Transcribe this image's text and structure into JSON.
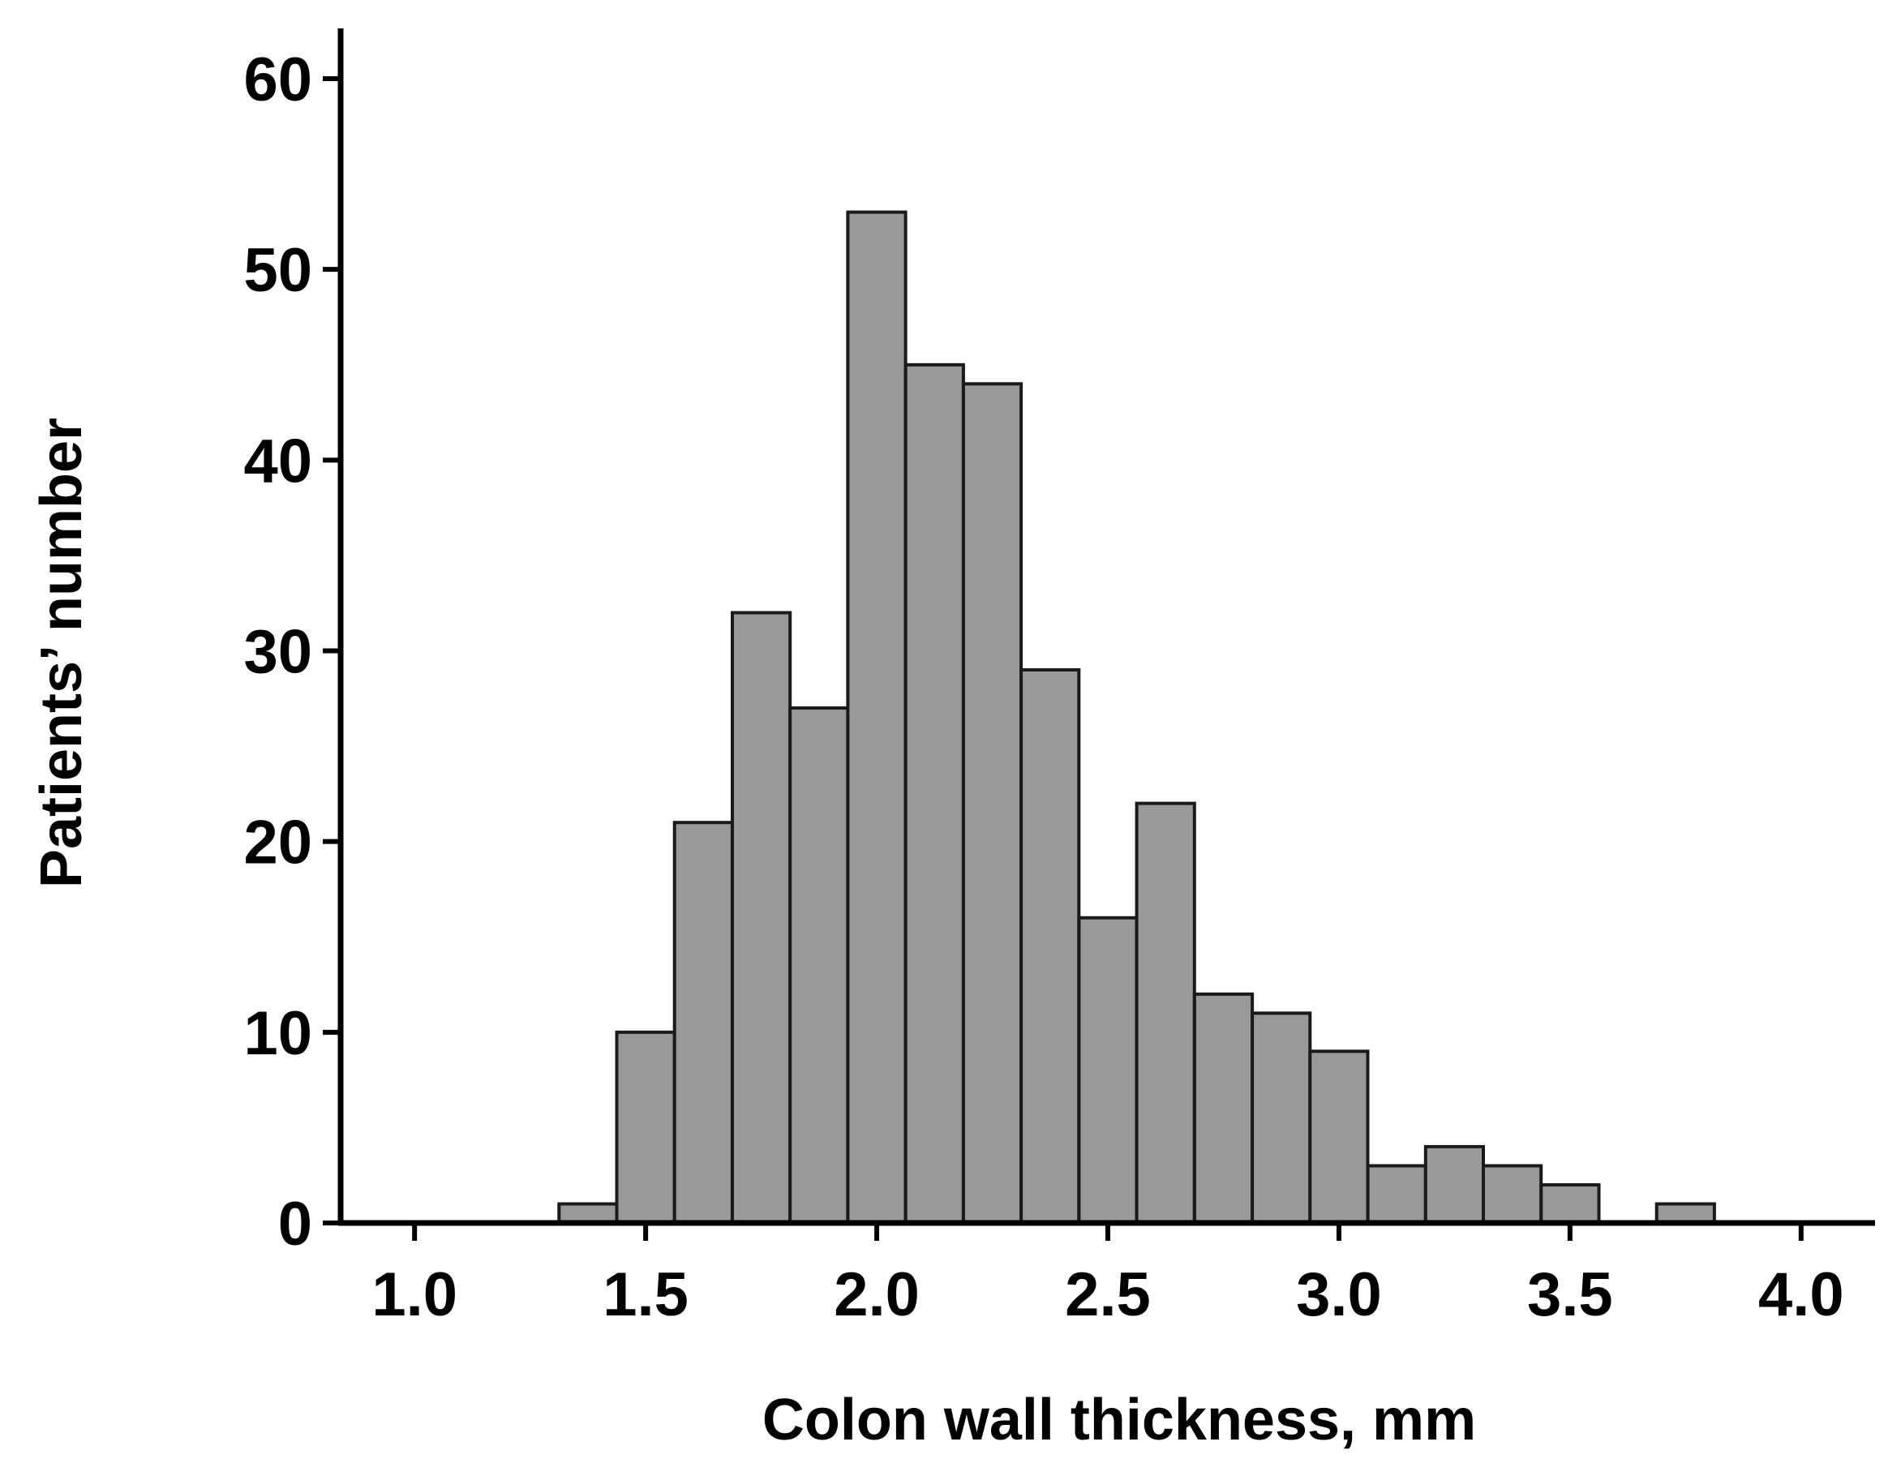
{
  "chart_data": {
    "type": "bar",
    "title": "",
    "xlabel": "Colon wall thickness, mm",
    "ylabel": "Patients’ number",
    "xlim": [
      0.84,
      4.16
    ],
    "ylim": [
      0,
      60
    ],
    "x_ticks": [
      {
        "value": 1.0,
        "label": "1.0"
      },
      {
        "value": 1.5,
        "label": "1.5"
      },
      {
        "value": 2.0,
        "label": "2.0"
      },
      {
        "value": 2.5,
        "label": "2.5"
      },
      {
        "value": 3.0,
        "label": "3.0"
      },
      {
        "value": 3.5,
        "label": "3.5"
      },
      {
        "value": 4.0,
        "label": "4.0"
      }
    ],
    "y_ticks": [
      {
        "value": 0,
        "label": "0"
      },
      {
        "value": 10,
        "label": "10"
      },
      {
        "value": 20,
        "label": "20"
      },
      {
        "value": 30,
        "label": "30"
      },
      {
        "value": 40,
        "label": "40"
      },
      {
        "value": 50,
        "label": "50"
      },
      {
        "value": 60,
        "label": "60"
      }
    ],
    "bin_width": 0.125,
    "bin_centers": [
      0.75,
      0.875,
      1.0,
      1.125,
      1.25,
      1.375,
      1.5,
      1.625,
      1.75,
      1.875,
      2.0,
      2.125,
      2.25,
      2.375,
      2.5,
      2.625,
      2.75,
      2.875,
      3.0,
      3.125,
      3.25,
      3.375,
      3.5,
      3.625,
      3.75,
      3.875,
      4.0
    ],
    "values": [
      0,
      0,
      0,
      0,
      0,
      1,
      10,
      21,
      32,
      27,
      53,
      45,
      44,
      29,
      16,
      22,
      12,
      11,
      9,
      3,
      4,
      3,
      2,
      0,
      1,
      0,
      0
    ],
    "bar_color": "#999999",
    "edge_color": "#1a1a1a",
    "grid": false,
    "legend": "none"
  }
}
